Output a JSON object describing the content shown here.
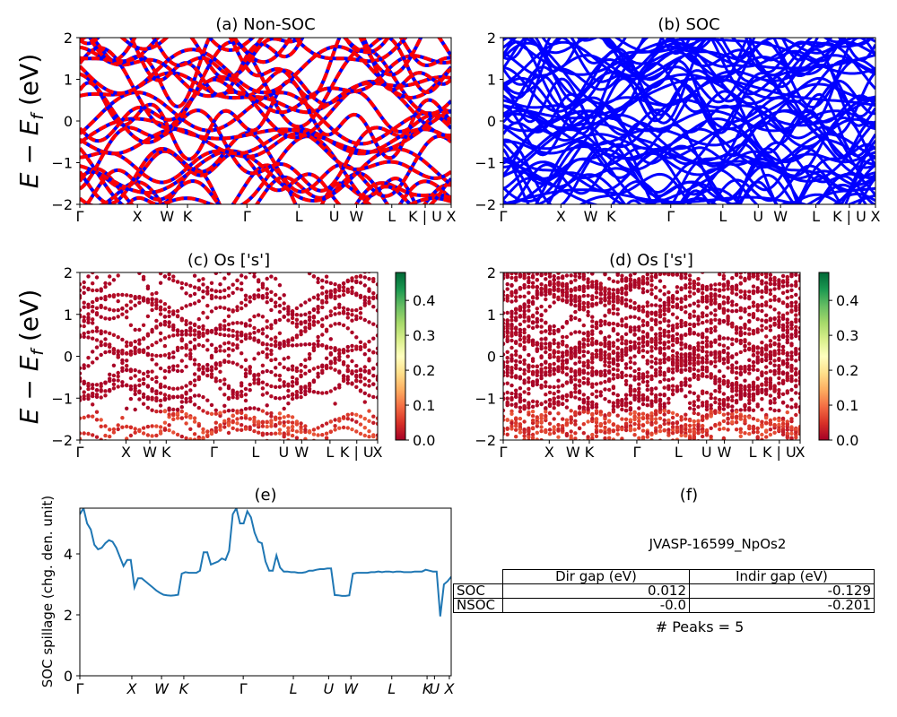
{
  "panels": {
    "a": {
      "title": "(a) Non-SOC"
    },
    "b": {
      "title": "(b) SOC"
    },
    "c": {
      "title": "(c)  Os ['s']"
    },
    "d": {
      "title": "(d) Os ['s']"
    },
    "e": {
      "title": "(e)"
    },
    "f": {
      "title": "(f)"
    }
  },
  "band_ylabel": "E − E_f (eV)",
  "band_yticks": [
    "2",
    "1",
    "0",
    "−1",
    "−2"
  ],
  "kpath_labels": [
    "Γ",
    "X",
    "W",
    "K",
    "Γ",
    "L",
    "U",
    "W",
    "L",
    "K | U",
    "X"
  ],
  "spillage_kpath_labels": [
    "Γ",
    "X",
    "W",
    "K",
    "Γ",
    "L",
    "U",
    "W",
    "L",
    "K",
    "U",
    "X"
  ],
  "colorbar": {
    "ticks": [
      "0.4",
      "0.3",
      "0.2",
      "0.1",
      "0.0"
    ],
    "colormap": "RdYlGn"
  },
  "colors": {
    "blue": "#0000ff",
    "red": "#ff0000",
    "spillage": "#1f77b4"
  },
  "material": "JVASP-16599_NpOs2",
  "gap_table": {
    "headers": [
      "Dir gap (eV)",
      "Indir gap (eV)"
    ],
    "rows": [
      {
        "label": "SOC",
        "dir": "0.012",
        "indir": "-0.129"
      },
      {
        "label": "NSOC",
        "dir": "-0.0",
        "indir": "-0.201"
      }
    ]
  },
  "peaks_text": "# Peaks = 5",
  "chart_data": [
    {
      "type": "line",
      "title": "(a) Non-SOC",
      "ylabel": "E − E_f (eV)",
      "ylim": [
        -2,
        2
      ],
      "note": "band structure; red dashed over blue",
      "x_ticks": [
        "Γ",
        "X",
        "W",
        "K",
        "Γ",
        "L",
        "U",
        "W",
        "L",
        "K | U",
        "X"
      ]
    },
    {
      "type": "line",
      "title": "(b) SOC",
      "ylim": [
        -2,
        2
      ],
      "x_ticks": [
        "Γ",
        "X",
        "W",
        "K",
        "Γ",
        "L",
        "U",
        "W",
        "L",
        "K | U",
        "X"
      ]
    },
    {
      "type": "scatter",
      "title": "(c)  Os ['s']",
      "ylabel": "E − E_f (eV)",
      "ylim": [
        -2,
        2
      ],
      "colorbar_range": [
        0.0,
        0.48
      ]
    },
    {
      "type": "scatter",
      "title": "(d) Os ['s']",
      "ylim": [
        -2,
        2
      ],
      "colorbar_range": [
        0.0,
        0.48
      ]
    },
    {
      "type": "line",
      "title": "(e)",
      "ylabel": "SOC spillage (chg. den. unit)",
      "ylim": [
        0,
        5.5
      ],
      "y_ticks": [
        "0",
        "2",
        "4"
      ],
      "x_ticks": [
        "Γ",
        "X",
        "W",
        "K",
        "Γ",
        "L",
        "U",
        "W",
        "L",
        "K",
        "U",
        "X"
      ],
      "series": [
        {
          "values": [
            5.3,
            5.5,
            5.0,
            4.8,
            4.3,
            4.15,
            4.2,
            4.35,
            4.45,
            4.4,
            4.2,
            3.9,
            3.6,
            3.8,
            3.8,
            2.9,
            3.2,
            3.2,
            3.1,
            3.0,
            2.9,
            2.8,
            2.72,
            2.66,
            2.64,
            2.63,
            2.64,
            2.66,
            3.35,
            3.4,
            3.38,
            3.38,
            3.38,
            3.45,
            4.05,
            4.05,
            3.65,
            3.7,
            3.75,
            3.85,
            3.8,
            4.1,
            5.3,
            5.5,
            5.0,
            5.0,
            5.4,
            5.2,
            4.7,
            4.4,
            4.35,
            3.75,
            3.45,
            3.45,
            3.95,
            3.55,
            3.42,
            3.42,
            3.4,
            3.4,
            3.38,
            3.38,
            3.4,
            3.45,
            3.45,
            3.48,
            3.5,
            3.5,
            3.52,
            3.52,
            2.65,
            2.64,
            2.62,
            2.62,
            2.64,
            3.35,
            3.38,
            3.38,
            3.38,
            3.38,
            3.4,
            3.4,
            3.42,
            3.4,
            3.42,
            3.42,
            3.4,
            3.42,
            3.42,
            3.4,
            3.4,
            3.4,
            3.42,
            3.42,
            3.42,
            3.48,
            3.45,
            3.42,
            3.42,
            1.95,
            3.0,
            3.1,
            3.25
          ]
        }
      ]
    }
  ]
}
